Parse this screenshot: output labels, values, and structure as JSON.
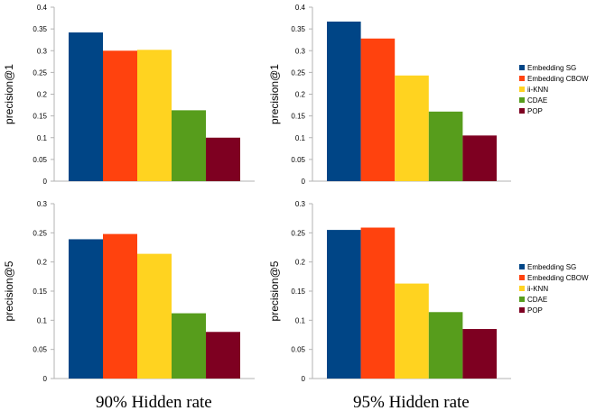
{
  "colors": [
    "#004586",
    "#ff420e",
    "#ffd320",
    "#579d1c",
    "#7e0021"
  ],
  "legend_top": {
    "items": [
      {
        "label": "Embedding SG",
        "color": "#004586"
      },
      {
        "label": "Embedding CBOW",
        "color": "#ff420e"
      },
      {
        "label": "ii-KNN",
        "color": "#ffd320"
      },
      {
        "label": "CDAE",
        "color": "#579d1c"
      },
      {
        "label": "POP",
        "color": "#7e0021"
      }
    ]
  },
  "legend_bottom": {
    "items": [
      {
        "label": "Embedding SG",
        "color": "#004586"
      },
      {
        "label": "Embedding CBOW",
        "color": "#ff420e"
      },
      {
        "label": "ii-KNN",
        "color": "#ffd320"
      },
      {
        "label": "CDAE",
        "color": "#579d1c"
      },
      {
        "label": "POP",
        "color": "#7e0021"
      }
    ]
  },
  "captions": {
    "left": "90% Hidden rate",
    "right": "95% Hidden rate"
  },
  "chart_data": [
    {
      "type": "bar",
      "ylabel": "precision@1",
      "ylim": [
        0,
        0.4
      ],
      "yticks": [
        "0",
        "0.05",
        "0.1",
        "0.15",
        "0.2",
        "0.25",
        "0.3",
        "0.35",
        "0.4"
      ],
      "series": [
        {
          "name": "Embedding SG",
          "values": [
            0.342
          ]
        },
        {
          "name": "Embedding CBOW",
          "values": [
            0.3
          ]
        },
        {
          "name": "ii-KNN",
          "values": [
            0.302
          ]
        },
        {
          "name": "CDAE",
          "values": [
            0.163
          ]
        },
        {
          "name": "POP",
          "values": [
            0.1
          ]
        }
      ]
    },
    {
      "type": "bar",
      "ylabel": "precision@1",
      "ylim": [
        0,
        0.4
      ],
      "yticks": [
        "0",
        "0.05",
        "0.1",
        "0.15",
        "0.2",
        "0.25",
        "0.3",
        "0.35",
        "0.4"
      ],
      "series": [
        {
          "name": "Embedding SG",
          "values": [
            0.367
          ]
        },
        {
          "name": "Embedding CBOW",
          "values": [
            0.328
          ]
        },
        {
          "name": "ii-KNN",
          "values": [
            0.243
          ]
        },
        {
          "name": "CDAE",
          "values": [
            0.16
          ]
        },
        {
          "name": "POP",
          "values": [
            0.105
          ]
        }
      ]
    },
    {
      "type": "bar",
      "ylabel": "precision@5",
      "ylim": [
        0,
        0.3
      ],
      "yticks": [
        "0",
        "0.05",
        "0.1",
        "0.15",
        "0.2",
        "0.25",
        "0.3"
      ],
      "series": [
        {
          "name": "Embedding SG",
          "values": [
            0.239
          ]
        },
        {
          "name": "Embedding CBOW",
          "values": [
            0.248
          ]
        },
        {
          "name": "ii-KNN",
          "values": [
            0.214
          ]
        },
        {
          "name": "CDAE",
          "values": [
            0.112
          ]
        },
        {
          "name": "POP",
          "values": [
            0.08
          ]
        }
      ]
    },
    {
      "type": "bar",
      "ylabel": "precision@5",
      "ylim": [
        0,
        0.3
      ],
      "yticks": [
        "0",
        "0.05",
        "0.1",
        "0.15",
        "0.2",
        "0.25",
        "0.3"
      ],
      "series": [
        {
          "name": "Embedding SG",
          "values": [
            0.255
          ]
        },
        {
          "name": "Embedding CBOW",
          "values": [
            0.259
          ]
        },
        {
          "name": "ii-KNN",
          "values": [
            0.163
          ]
        },
        {
          "name": "CDAE",
          "values": [
            0.114
          ]
        },
        {
          "name": "POP",
          "values": [
            0.085
          ]
        }
      ]
    }
  ]
}
